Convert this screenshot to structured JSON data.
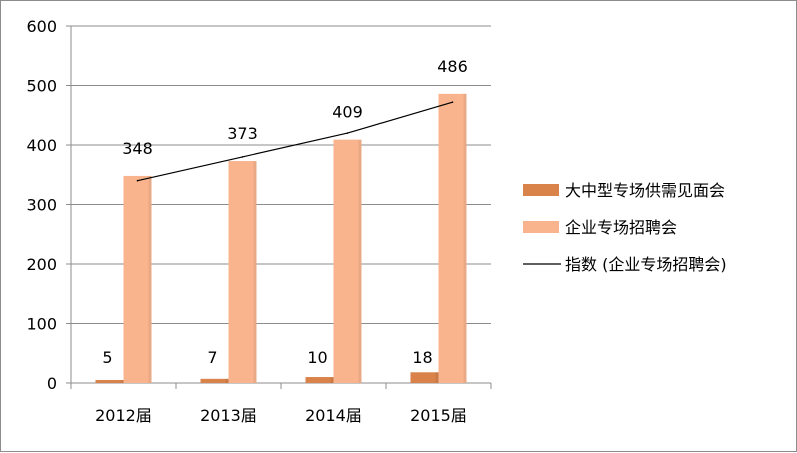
{
  "chart_data": {
    "type": "bar",
    "categories": [
      "2012届",
      "2013届",
      "2014届",
      "2015届"
    ],
    "series": [
      {
        "name": "大中型专场供需见面会",
        "type": "bar",
        "color": "#d9824a",
        "values": [
          5,
          7,
          10,
          18
        ]
      },
      {
        "name": "企业专场招聘会",
        "type": "bar",
        "color": "#f9b48e",
        "values": [
          348,
          373,
          409,
          486
        ]
      },
      {
        "name": "指数 (企业专场招聘会)",
        "type": "line",
        "color": "#000000",
        "values": [
          340,
          380,
          420,
          472
        ]
      }
    ],
    "data_labels": {
      "大中型专场供需见面会": [
        "5",
        "7",
        "10",
        "18"
      ],
      "企业专场招聘会": [
        "348",
        "373",
        "409",
        "486"
      ]
    },
    "y_ticks": [
      "0",
      "100",
      "200",
      "300",
      "400",
      "500",
      "600"
    ],
    "ylim": [
      0,
      600
    ],
    "grid": true,
    "legend_position": "right"
  }
}
